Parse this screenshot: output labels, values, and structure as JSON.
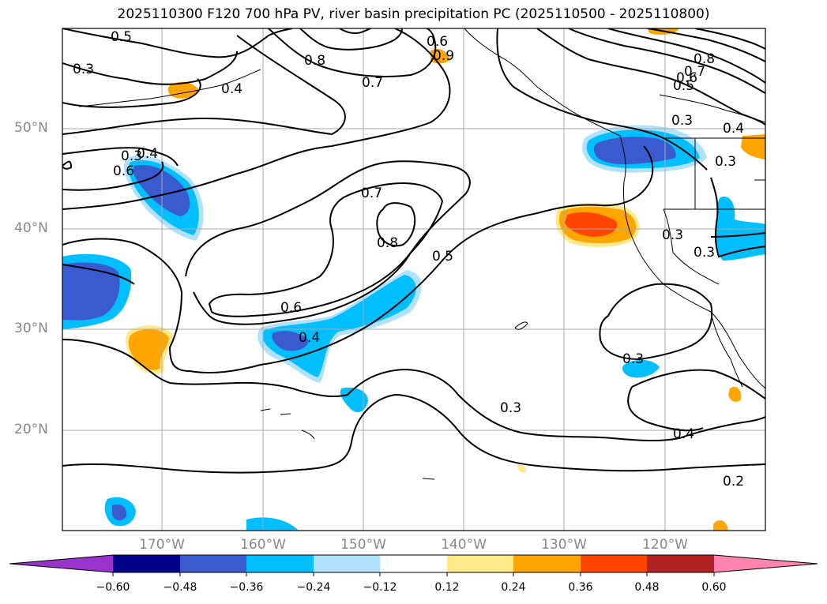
{
  "title": "2025110300 F120 700 hPa PV, river basin precipitation PC (2025110500 - 2025110800)",
  "latitude_labels": [
    "50°N",
    "40°N",
    "30°N",
    "20°N"
  ],
  "longitude_labels": [
    "170°W",
    "160°W",
    "150°W",
    "140°W",
    "130°W",
    "120°W"
  ],
  "contour_labels": [
    "0.5",
    "0.3",
    "0.4",
    "0.8",
    "0.7",
    "0.6",
    "0.9",
    "0.8",
    "0.7",
    "0.6",
    "0.5",
    "0.3",
    "0.4",
    "0.3",
    "0.4",
    "0.6",
    "0.7",
    "0.8",
    "0.5",
    "0.6",
    "0.4",
    "0.3",
    "0.3",
    "0.3",
    "0.4",
    "0.2",
    "0.3",
    "0.3"
  ],
  "colorbar": {
    "ticks": [
      "−0.60",
      "−0.48",
      "−0.36",
      "−0.24",
      "−0.12",
      "0.12",
      "0.24",
      "0.36",
      "0.48",
      "0.60"
    ],
    "colors": [
      "#9933cc",
      "#00008b",
      "#3a5bd0",
      "#00bfff",
      "#b0e2ff",
      "#ffffff",
      "#ffe98a",
      "#ffa500",
      "#ff4500",
      "#b22222",
      "#ff85b0"
    ]
  }
}
